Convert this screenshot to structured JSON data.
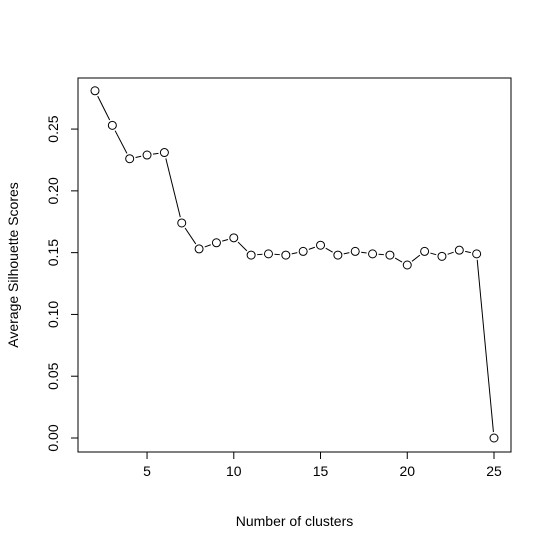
{
  "chart_data": {
    "type": "line",
    "title": "",
    "xlabel": "Number of clusters",
    "ylabel": "Average Silhouette Scores",
    "xlim": [
      2,
      25
    ],
    "ylim": [
      0.0,
      0.28
    ],
    "x_ticks": [
      5,
      10,
      15,
      20,
      25
    ],
    "y_ticks": [
      0.0,
      0.05,
      0.1,
      0.15,
      0.2,
      0.25
    ],
    "x_tick_labels": [
      "5",
      "10",
      "15",
      "20",
      "25"
    ],
    "y_tick_labels": [
      "0.00",
      "0.05",
      "0.10",
      "0.15",
      "0.20",
      "0.25"
    ],
    "grid": false,
    "marker": "open-circle",
    "series": [
      {
        "x": [
          2,
          3,
          4,
          5,
          6,
          7,
          8,
          9,
          10,
          11,
          12,
          13,
          14,
          15,
          16,
          17,
          18,
          19,
          20,
          21,
          22,
          23,
          24,
          25
        ],
        "values": [
          0.281,
          0.253,
          0.226,
          0.229,
          0.231,
          0.174,
          0.153,
          0.158,
          0.162,
          0.148,
          0.149,
          0.148,
          0.151,
          0.156,
          0.148,
          0.151,
          0.149,
          0.148,
          0.14,
          0.151,
          0.147,
          0.152,
          0.149,
          0.0
        ]
      }
    ]
  }
}
